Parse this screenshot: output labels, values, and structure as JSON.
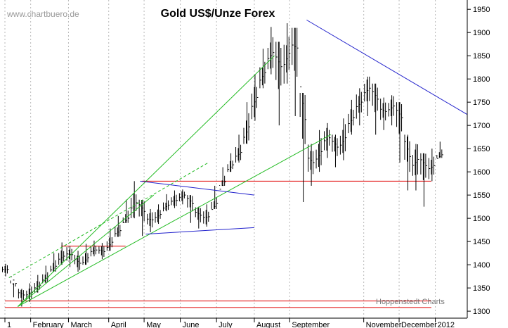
{
  "watermark": "www.chartbuero.de",
  "credit": "Hoppenstedt Charts",
  "colors": {
    "price": "#000000",
    "grid": "#b8b8b8",
    "support": "#e00000",
    "trend_green": "#22bb22",
    "trend_blue": "#2222cc"
  },
  "chart_data": {
    "type": "ohlc",
    "title": "Gold US$/Unze Forex",
    "xlabel": "",
    "ylabel": "",
    "ylim": [
      1285,
      1970
    ],
    "yticks": [
      1300,
      1350,
      1400,
      1450,
      1500,
      1550,
      1600,
      1650,
      1700,
      1750,
      1800,
      1850,
      1900,
      1950
    ],
    "yaxis_side": "right",
    "grid": {
      "vertical": true,
      "horizontal": false,
      "style": "dotted"
    },
    "xlim": [
      0,
      53
    ],
    "month_labels": [
      {
        "label": "1",
        "x": 0
      },
      {
        "label": "February",
        "x": 3.2
      },
      {
        "label": "March",
        "x": 7.9
      },
      {
        "label": "April",
        "x": 12.9
      },
      {
        "label": "May",
        "x": 17.3
      },
      {
        "label": "June",
        "x": 21.8
      },
      {
        "label": "July",
        "x": 26.3
      },
      {
        "label": "August",
        "x": 31
      },
      {
        "label": "September",
        "x": 35.4
      },
      {
        "label": "November",
        "x": 44.6
      },
      {
        "label": "December",
        "x": 49
      },
      {
        "label": "2012",
        "x": 53.5
      }
    ],
    "series": [
      {
        "weekly_close": [
          1390,
          1345,
          1330,
          1345,
          1360,
          1380,
          1405,
          1425,
          1420,
          1395,
          1425,
          1435,
          1425,
          1460,
          1480,
          1510,
          1545,
          1500,
          1495,
          1515,
          1535,
          1540,
          1555,
          1520,
          1500,
          1505,
          1545,
          1595,
          1625,
          1650,
          1720,
          1780,
          1830,
          1870,
          1805,
          1880,
          1860,
          1640,
          1610,
          1660,
          1680,
          1640,
          1690,
          1730,
          1760,
          1790,
          1740,
          1725,
          1750,
          1700,
          1600,
          1640,
          1600,
          1620,
          1645
        ],
        "weekly_high": [
          1402,
          1360,
          1348,
          1360,
          1378,
          1398,
          1425,
          1448,
          1440,
          1430,
          1445,
          1452,
          1447,
          1478,
          1505,
          1540,
          1580,
          1540,
          1520,
          1530,
          1552,
          1560,
          1562,
          1550,
          1525,
          1530,
          1570,
          1610,
          1640,
          1680,
          1750,
          1810,
          1865,
          1912,
          1880,
          1920,
          1910,
          1770,
          1660,
          1690,
          1705,
          1680,
          1715,
          1755,
          1780,
          1805,
          1790,
          1760,
          1765,
          1750,
          1680,
          1660,
          1640,
          1650,
          1665
        ],
        "weekly_low": [
          1375,
          1330,
          1310,
          1320,
          1340,
          1360,
          1385,
          1400,
          1395,
          1385,
          1400,
          1418,
          1412,
          1430,
          1460,
          1490,
          1500,
          1462,
          1470,
          1488,
          1515,
          1522,
          1530,
          1490,
          1478,
          1482,
          1520,
          1570,
          1600,
          1620,
          1660,
          1710,
          1780,
          1810,
          1700,
          1790,
          1720,
          1535,
          1570,
          1600,
          1630,
          1610,
          1625,
          1680,
          1700,
          1720,
          1680,
          1690,
          1700,
          1620,
          1560,
          1560,
          1525,
          1580,
          1630
        ]
      }
    ],
    "horizontal_lines": [
      {
        "y": 1580,
        "x_from": 17,
        "x_to": 53
      },
      {
        "y": 1440,
        "x_from": 7,
        "x_to": 15
      },
      {
        "y": 1322,
        "x_from": 0,
        "x_to": 53
      },
      {
        "y": 1308,
        "x_from": 0,
        "x_to": 53
      }
    ],
    "trend_lines": [
      {
        "color": "green",
        "from": [
          1.6,
          1310
        ],
        "to": [
          40.5,
          1680
        ]
      },
      {
        "color": "green",
        "from": [
          1.6,
          1310
        ],
        "to": [
          33.5,
          1850
        ]
      },
      {
        "color": "green",
        "from": [
          1.6,
          1310
        ],
        "to": [
          18.5,
          1550
        ]
      },
      {
        "color": "green",
        "dashed": true,
        "from": [
          0.5,
          1372
        ],
        "to": [
          25.3,
          1620
        ]
      },
      {
        "color": "blue",
        "from": [
          16.8,
          1580
        ],
        "to": [
          31,
          1550
        ]
      },
      {
        "color": "blue",
        "from": [
          17.5,
          1466
        ],
        "to": [
          31,
          1480
        ]
      },
      {
        "color": "blue",
        "from": [
          37.5,
          1927
        ],
        "to": [
          63,
          1667
        ]
      }
    ]
  }
}
